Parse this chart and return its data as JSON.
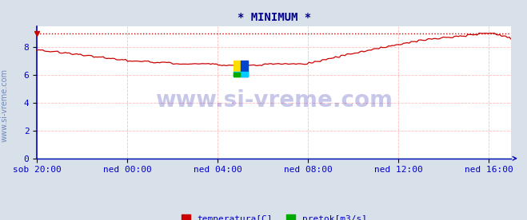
{
  "title": "* MINIMUM *",
  "title_color": "#00008b",
  "title_fontsize": 10,
  "bg_color": "#d8e0ea",
  "plot_bg_color": "#ffffff",
  "grid_color": "#ffbbbb",
  "grid_alpha": 1.0,
  "axis_color": "#0000cc",
  "tick_color": "#0000cc",
  "tick_fontsize": 8,
  "side_label": "www.si-vreme.com",
  "ylim": [
    0,
    9.5
  ],
  "yticks": [
    0,
    2,
    4,
    6,
    8
  ],
  "x_tick_positions": [
    0.0,
    0.1905,
    0.381,
    0.5714,
    0.7619,
    0.9524
  ],
  "x_labels": [
    "sob 20:00",
    "ned 00:00",
    "ned 04:00",
    "ned 08:00",
    "ned 12:00",
    "ned 16:00"
  ],
  "min_line_value": 9.0,
  "min_line_color": "#cc0000",
  "temp_color": "#cc0000",
  "pretok_color": "#00aa00",
  "legend_items": [
    "temperatura[C]",
    "pretok[m3/s]"
  ],
  "legend_colors": [
    "#cc0000",
    "#00aa00"
  ],
  "watermark_text": "www.si-vreme.com",
  "watermark_color": "#2222aa",
  "watermark_alpha": 0.25,
  "side_watermark_color": "#4466aa",
  "side_watermark_fontsize": 7
}
